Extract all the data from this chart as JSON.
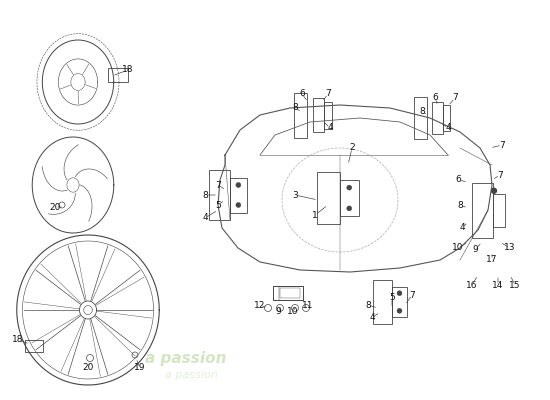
{
  "bg": "#ffffff",
  "lc": "#444444",
  "wm1": "a passion",
  "wm2": "a passion",
  "wm_color": "#c8ddb0",
  "fig_w": 5.5,
  "fig_h": 4.0,
  "dpi": 100,
  "label_fs": 6.5,
  "label_color": "#111111",
  "line_color": "#444444",
  "part_color": "#555555"
}
